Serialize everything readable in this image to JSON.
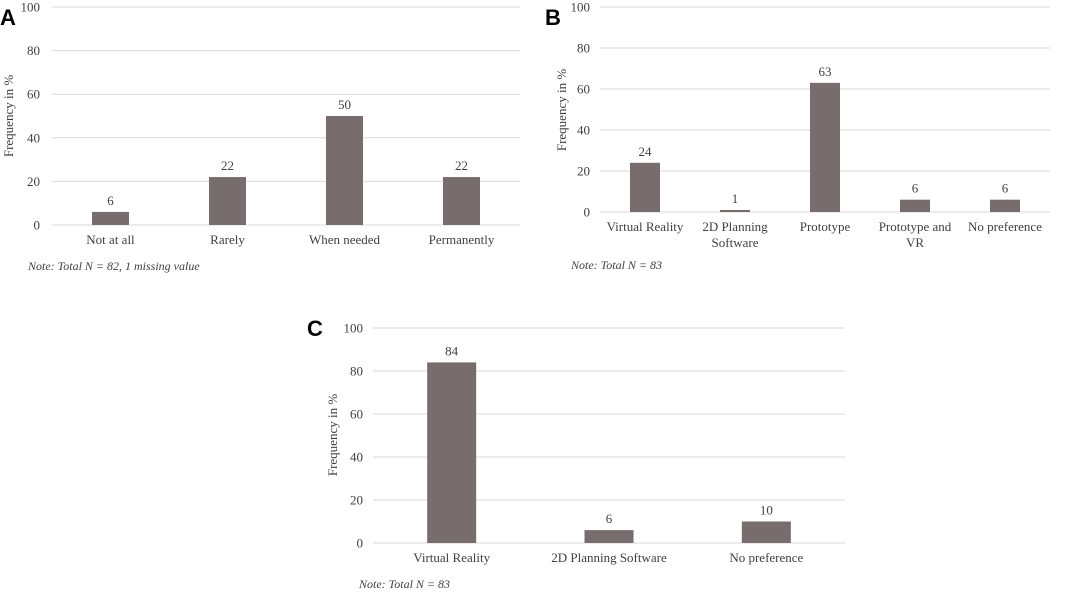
{
  "chart_data": [
    {
      "panel": "A",
      "type": "bar",
      "categories": [
        "Not at all",
        "Rarely",
        "When needed",
        "Permanently"
      ],
      "values": [
        6,
        22,
        50,
        22
      ],
      "ylabel": "Frequency in %",
      "ylim": [
        0,
        100
      ],
      "yticks": [
        0,
        20,
        40,
        60,
        80,
        100
      ],
      "note": "Note: Total N = 82, 1 missing value",
      "color": "#776d6d"
    },
    {
      "panel": "B",
      "type": "bar",
      "categories": [
        [
          "Virtual Reality"
        ],
        [
          "2D Planning",
          "Software"
        ],
        [
          "Prototype"
        ],
        [
          "Prototype and",
          "VR"
        ],
        [
          "No preference"
        ]
      ],
      "values": [
        24,
        1,
        63,
        6,
        6
      ],
      "ylabel": "Frequency in %",
      "ylim": [
        0,
        100
      ],
      "yticks": [
        0,
        20,
        40,
        60,
        80,
        100
      ],
      "note": "Note: Total N = 83",
      "color": "#776d6d"
    },
    {
      "panel": "C",
      "type": "bar",
      "categories": [
        "Virtual Reality",
        "2D Planning Software",
        "No preference"
      ],
      "values": [
        84,
        6,
        10
      ],
      "ylabel": "Frequency in %",
      "ylim": [
        0,
        100
      ],
      "yticks": [
        0,
        20,
        40,
        60,
        80,
        100
      ],
      "note": "Note: Total N = 83",
      "color": "#776d6d"
    }
  ]
}
